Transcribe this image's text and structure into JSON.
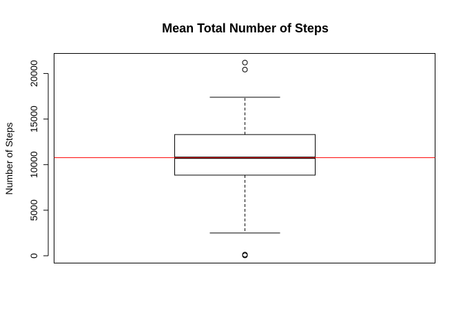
{
  "chart_data": {
    "type": "boxplot",
    "title": "Mean Total Number of Steps",
    "xlabel": "",
    "ylabel": "Number of Steps",
    "ylim": [
      -800,
      22200
    ],
    "yticks": [
      0,
      5000,
      10000,
      15000,
      20000
    ],
    "ytick_labels": [
      "0",
      "5000",
      "10000",
      "15000",
      "20000"
    ],
    "box": {
      "lower_whisker": 2500,
      "q1": 8850,
      "median": 10760,
      "q3": 13300,
      "upper_whisker": 17400
    },
    "outliers": [
      41,
      126,
      20427,
      21194
    ],
    "reference_line": {
      "value": 10766,
      "color": "#ff0000"
    },
    "colors": {
      "box": "#000000",
      "reference_line": "#ff0000"
    }
  }
}
